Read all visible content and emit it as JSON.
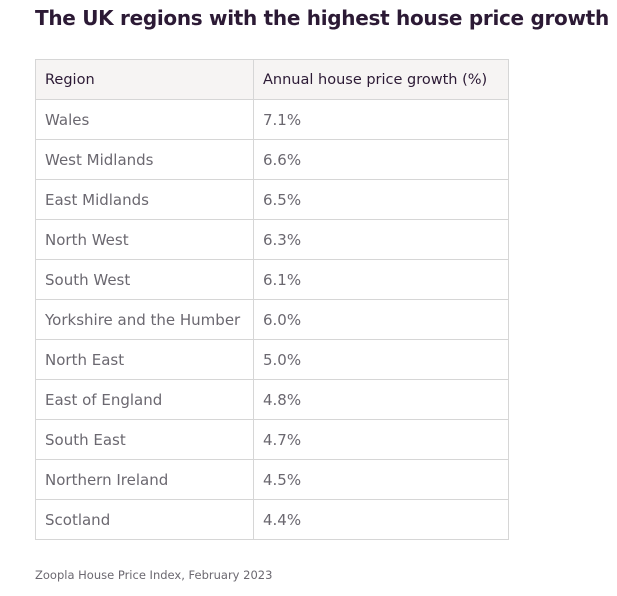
{
  "title": "The UK regions with the highest house price growth",
  "table": {
    "headers": [
      "Region",
      "Annual house price growth (%)"
    ],
    "rows": [
      [
        "Wales",
        "7.1%"
      ],
      [
        "West Midlands",
        "6.6%"
      ],
      [
        "East Midlands",
        "6.5%"
      ],
      [
        "North West",
        "6.3%"
      ],
      [
        "South West",
        "6.1%"
      ],
      [
        "Yorkshire and the Humber",
        "6.0%"
      ],
      [
        "North East",
        "5.0%"
      ],
      [
        "East of England",
        "4.8%"
      ],
      [
        "South East",
        "4.7%"
      ],
      [
        "Northern Ireland",
        "4.5%"
      ],
      [
        "Scotland",
        "4.4%"
      ]
    ]
  },
  "caption": "Zoopla House Price Index, February 2023"
}
